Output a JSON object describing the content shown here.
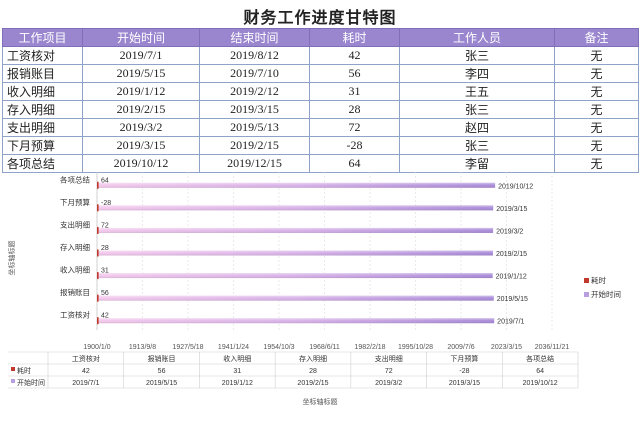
{
  "title": "财务工作进度甘特图",
  "table": {
    "headers": [
      "工作项目",
      "开始时间",
      "结束时间",
      "耗时",
      "工作人员",
      "备注"
    ],
    "rows": [
      {
        "item": "工资核对",
        "start": "2019/7/1",
        "end": "2019/8/12",
        "duration": "42",
        "person": "张三",
        "note": "无"
      },
      {
        "item": "报销账目",
        "start": "2019/5/15",
        "end": "2019/7/10",
        "duration": "56",
        "person": "李四",
        "note": "无"
      },
      {
        "item": "收入明细",
        "start": "2019/1/12",
        "end": "2019/2/12",
        "duration": "31",
        "person": "王五",
        "note": "无"
      },
      {
        "item": "存入明细",
        "start": "2019/2/15",
        "end": "2019/3/15",
        "duration": "28",
        "person": "张三",
        "note": "无"
      },
      {
        "item": "支出明细",
        "start": "2019/3/2",
        "end": "2019/5/13",
        "duration": "72",
        "person": "赵四",
        "note": "无"
      },
      {
        "item": "下月预算",
        "start": "2019/3/15",
        "end": "2019/2/15",
        "duration": "-28",
        "person": "张三",
        "note": "无"
      },
      {
        "item": "各项总结",
        "start": "2019/10/12",
        "end": "2019/12/15",
        "duration": "64",
        "person": "李留",
        "note": "无"
      }
    ]
  },
  "chart_data": {
    "type": "bar",
    "orientation": "horizontal",
    "stacked": true,
    "categories": [
      "工资核对",
      "报销账目",
      "收入明细",
      "存入明细",
      "支出明细",
      "下月预算",
      "各项总结"
    ],
    "series": [
      {
        "name": "耗时",
        "values": [
          42,
          56,
          31,
          28,
          72,
          -28,
          64
        ],
        "color": "#c0392b"
      },
      {
        "name": "开始时间",
        "values": [
          "2019/7/1",
          "2019/5/15",
          "2019/1/12",
          "2019/2/15",
          "2019/3/2",
          "2019/3/15",
          "2019/10/12"
        ],
        "color": "#b99ee0"
      }
    ],
    "xticks": [
      "1900/1/0",
      "1913/9/8",
      "1927/5/18",
      "1941/1/24",
      "1954/10/3",
      "1968/6/11",
      "1982/2/18",
      "1995/10/28",
      "2009/7/6",
      "2023/3/15",
      "2036/11/21"
    ],
    "xlabel": "坐标轴标题",
    "ylabel": "坐标轴标题",
    "legend_position": "right",
    "data_table": true
  }
}
